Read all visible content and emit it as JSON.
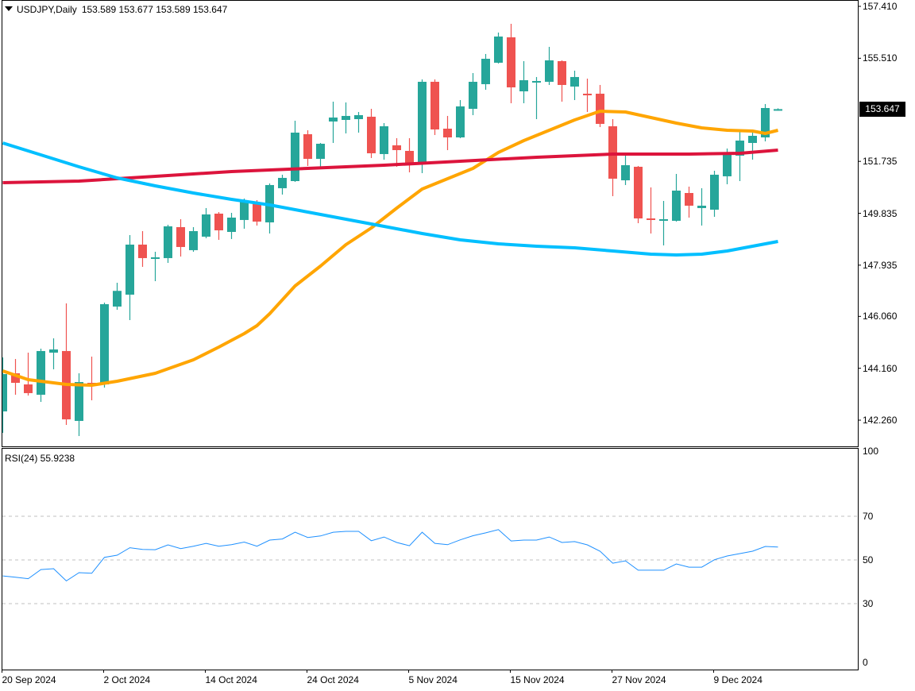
{
  "header": {
    "symbol_timeframe": "USDJPY,Daily",
    "ohlc": "153.589 153.677 153.589 153.647",
    "menu_icon": "triangle-down-icon"
  },
  "current_price": "153.647",
  "rsi_title": "RSI(24) 55.9238",
  "colors": {
    "bull": "#26a69a",
    "bear": "#ef5350",
    "ma_orange": "#ffa500",
    "ma_red": "#dc143c",
    "ma_blue": "#00bfff",
    "rsi": "#1e90ff"
  },
  "chart_data": [
    {
      "type": "candlestick",
      "title": "USDJPY,Daily",
      "ylim": [
        142.26,
        157.41
      ],
      "y_tick_labels": [
        "157.410",
        "155.510",
        "151.735",
        "149.835",
        "147.935",
        "146.060",
        "144.160",
        "142.260"
      ],
      "x_labels": [
        {
          "label": "20 Sep 2024",
          "index": 0
        },
        {
          "label": "2 Oct 2024",
          "index": 8
        },
        {
          "label": "14 Oct 2024",
          "index": 16
        },
        {
          "label": "24 Oct 2024",
          "index": 24
        },
        {
          "label": "5 Nov 2024",
          "index": 32
        },
        {
          "label": "15 Nov 2024",
          "index": 40
        },
        {
          "label": "27 Nov 2024",
          "index": 48
        },
        {
          "label": "9 Dec 2024",
          "index": 56
        }
      ],
      "candles_ohlc": [
        [
          142.581,
          144.558,
          141.795,
          143.947
        ],
        [
          143.976,
          144.5,
          143.191,
          143.627
        ],
        [
          143.569,
          144.732,
          143.162,
          143.25
        ],
        [
          143.191,
          144.878,
          142.929,
          144.791
        ],
        [
          144.732,
          145.256,
          144.122,
          144.849
        ],
        [
          144.791,
          146.535,
          142.086,
          142.29
        ],
        [
          142.232,
          143.976,
          141.679,
          143.656
        ],
        [
          143.627,
          144.587,
          142.988,
          143.569
        ],
        [
          143.569,
          146.564,
          143.453,
          146.506
        ],
        [
          146.419,
          147.291,
          146.302,
          146.993
        ],
        [
          146.855,
          149.036,
          145.924,
          148.687
        ],
        [
          148.687,
          149.181,
          147.873,
          148.193
        ],
        [
          148.164,
          148.425,
          147.349,
          148.222
        ],
        [
          148.193,
          149.414,
          148.018,
          149.356
        ],
        [
          149.327,
          149.617,
          148.251,
          148.6
        ],
        [
          148.484,
          149.327,
          148.425,
          149.181
        ],
        [
          148.978,
          150.025,
          148.92,
          149.792
        ],
        [
          149.821,
          149.879,
          148.862,
          149.21
        ],
        [
          149.152,
          149.85,
          148.891,
          149.676
        ],
        [
          149.589,
          150.374,
          149.269,
          150.257
        ],
        [
          150.17,
          150.315,
          149.385,
          149.53
        ],
        [
          149.501,
          150.926,
          149.094,
          150.868
        ],
        [
          150.752,
          151.246,
          150.519,
          151.13
        ],
        [
          151.013,
          153.223,
          150.984,
          152.787
        ],
        [
          152.729,
          152.874,
          151.566,
          151.827
        ],
        [
          151.827,
          152.409,
          151.45,
          152.38
        ],
        [
          153.194,
          153.921,
          152.409,
          153.34
        ],
        [
          153.252,
          153.892,
          152.758,
          153.398
        ],
        [
          153.281,
          153.543,
          152.787,
          153.427
        ],
        [
          153.369,
          153.659,
          151.857,
          152.031
        ],
        [
          152.002,
          153.136,
          151.798,
          153.02
        ],
        [
          152.322,
          152.583,
          151.537,
          152.147
        ],
        [
          152.118,
          152.583,
          151.333,
          151.624
        ],
        [
          151.624,
          154.735,
          151.304,
          154.648
        ],
        [
          154.648,
          154.735,
          152.7,
          152.903
        ],
        [
          152.932,
          153.398,
          152.147,
          152.612
        ],
        [
          152.612,
          153.979,
          152.583,
          153.747
        ],
        [
          153.659,
          154.968,
          153.427,
          154.648
        ],
        [
          154.561,
          155.666,
          154.357,
          155.491
        ],
        [
          155.346,
          156.451,
          155.317,
          156.305
        ],
        [
          156.276,
          156.771,
          153.863,
          154.444
        ],
        [
          154.299,
          155.404,
          153.863,
          154.706
        ],
        [
          154.619,
          154.823,
          153.281,
          154.677
        ],
        [
          154.648,
          155.927,
          154.532,
          155.433
        ],
        [
          155.404,
          155.433,
          153.921,
          154.532
        ],
        [
          154.474,
          155.055,
          153.979,
          154.823
        ],
        [
          154.212,
          154.764,
          153.543,
          154.154
        ],
        [
          154.212,
          154.532,
          152.99,
          153.107
        ],
        [
          153.019,
          153.281,
          150.461,
          151.101
        ],
        [
          151.042,
          151.973,
          150.868,
          151.595
        ],
        [
          151.537,
          151.566,
          149.472,
          149.646
        ],
        [
          149.646,
          150.781,
          149.094,
          149.588
        ],
        [
          149.559,
          150.286,
          148.658,
          149.617
        ],
        [
          149.559,
          151.275,
          149.53,
          150.664
        ],
        [
          150.577,
          150.81,
          149.676,
          150.112
        ],
        [
          150.025,
          150.752,
          149.385,
          150.112
        ],
        [
          149.966,
          151.391,
          149.705,
          151.246
        ],
        [
          151.188,
          152.205,
          150.897,
          152.002
        ],
        [
          151.944,
          152.903,
          151.013,
          152.496
        ],
        [
          152.409,
          152.816,
          151.798,
          152.67
        ],
        [
          152.612,
          153.834,
          152.467,
          153.688
        ],
        [
          153.589,
          153.677,
          153.589,
          153.647
        ]
      ],
      "moving_averages": [
        {
          "name": "orange-ma",
          "points": [
            [
              0,
              144.064
            ],
            [
              2,
              143.744
            ],
            [
              5,
              143.569
            ],
            [
              7,
              143.54
            ],
            [
              9,
              143.686
            ],
            [
              12,
              143.976
            ],
            [
              15,
              144.47
            ],
            [
              17,
              144.936
            ],
            [
              19,
              145.43
            ],
            [
              20,
              145.721
            ],
            [
              21,
              146.157
            ],
            [
              23,
              147.175
            ],
            [
              25,
              147.902
            ],
            [
              27,
              148.687
            ],
            [
              29,
              149.298
            ],
            [
              31,
              150.025
            ],
            [
              33,
              150.722
            ],
            [
              35,
              151.101
            ],
            [
              37,
              151.479
            ],
            [
              39,
              152.061
            ],
            [
              41,
              152.496
            ],
            [
              43,
              152.874
            ],
            [
              45,
              153.252
            ],
            [
              47,
              153.572
            ],
            [
              49,
              153.543
            ],
            [
              51,
              153.339
            ],
            [
              53,
              153.136
            ],
            [
              55,
              152.961
            ],
            [
              57,
              152.874
            ],
            [
              59,
              152.845
            ],
            [
              60,
              152.758
            ],
            [
              61,
              152.874
            ]
          ]
        },
        {
          "name": "red-ma",
          "points": [
            [
              0,
              150.955
            ],
            [
              6,
              151.013
            ],
            [
              12,
              151.188
            ],
            [
              18,
              151.362
            ],
            [
              24,
              151.479
            ],
            [
              30,
              151.595
            ],
            [
              36,
              151.74
            ],
            [
              42,
              151.885
            ],
            [
              48,
              152.002
            ],
            [
              54,
              152.002
            ],
            [
              58,
              152.031
            ],
            [
              61,
              152.147
            ]
          ]
        },
        {
          "name": "blue-ma",
          "points": [
            [
              0,
              152.409
            ],
            [
              3,
              151.973
            ],
            [
              6,
              151.537
            ],
            [
              9,
              151.13
            ],
            [
              12,
              150.839
            ],
            [
              15,
              150.577
            ],
            [
              18,
              150.344
            ],
            [
              21,
              150.141
            ],
            [
              24,
              149.879
            ],
            [
              27,
              149.617
            ],
            [
              30,
              149.356
            ],
            [
              33,
              149.094
            ],
            [
              36,
              148.861
            ],
            [
              39,
              148.716
            ],
            [
              42,
              148.629
            ],
            [
              45,
              148.571
            ],
            [
              48,
              148.455
            ],
            [
              51,
              148.338
            ],
            [
              53,
              148.309
            ],
            [
              55,
              148.338
            ],
            [
              57,
              148.455
            ],
            [
              59,
              148.629
            ],
            [
              61,
              148.803
            ]
          ]
        }
      ]
    },
    {
      "type": "line",
      "title": "RSI(24) 55.9238",
      "ylim": [
        0,
        100
      ],
      "y_tick_labels": [
        "100",
        "70",
        "50",
        "30",
        "0"
      ],
      "levels": [
        70,
        50,
        30
      ],
      "values": [
        42.7,
        42.1,
        41.4,
        45.6,
        46.0,
        40.4,
        44.2,
        43.9,
        51.2,
        52.2,
        55.6,
        54.8,
        54.7,
        56.9,
        55.2,
        56.3,
        57.6,
        56.3,
        57.0,
        58.2,
        56.3,
        59.1,
        59.6,
        62.7,
        60.3,
        61.0,
        62.7,
        63.1,
        63.1,
        58.8,
        60.5,
        58.0,
        56.5,
        62.7,
        57.6,
        57.0,
        59.2,
        61.1,
        62.4,
        63.9,
        58.7,
        59.1,
        59.1,
        60.5,
        58.0,
        58.4,
        56.9,
        54.0,
        48.5,
        49.6,
        45.3,
        45.3,
        45.3,
        48.2,
        46.7,
        46.7,
        50.1,
        51.8,
        52.9,
        54.0,
        56.2,
        55.9
      ]
    }
  ]
}
